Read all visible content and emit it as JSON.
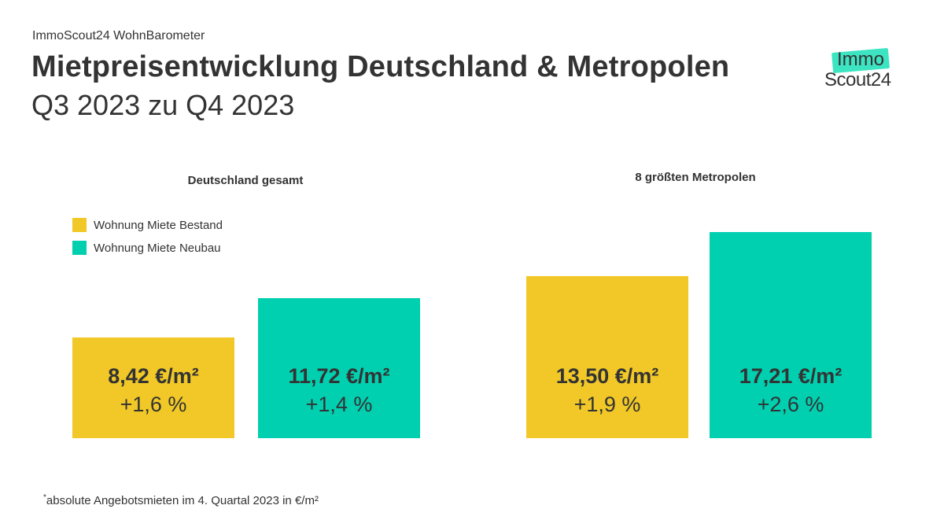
{
  "header": {
    "kicker": "ImmoScout24 WohnBarometer",
    "title": "Mietpreisentwicklung Deutschland & Metropolen",
    "subtitle": "Q3 2023 zu Q4 2023"
  },
  "logo": {
    "line1": "Immo",
    "line2": "Scout24"
  },
  "legend": [
    {
      "label": "Wohnung Miete Bestand",
      "color": "#f1c827"
    },
    {
      "label": "Wohnung Miete Neubau",
      "color": "#00d0b0"
    }
  ],
  "footnote": {
    "marker": "*",
    "text": "absolute Angebotsmieten im 4. Quartal 2023 in €/m²"
  },
  "chart_data": [
    {
      "type": "bar",
      "title": "Deutschland gesamt",
      "unit": "€/m²",
      "categories": [
        "Wohnung Miete Bestand",
        "Wohnung Miete Neubau"
      ],
      "values": [
        8.42,
        11.72
      ],
      "value_labels": [
        "8,42 €/m²",
        "11,72 €/m²"
      ],
      "changes": [
        "+1,6 %",
        "+1,4 %"
      ],
      "colors": [
        "#f1c827",
        "#00d0b0"
      ]
    },
    {
      "type": "bar",
      "title": "8 größten Metropolen",
      "unit": "€/m²",
      "categories": [
        "Wohnung Miete Bestand",
        "Wohnung Miete Neubau"
      ],
      "values": [
        13.5,
        17.21
      ],
      "value_labels": [
        "13,50 €/m²",
        "17,21 €/m²"
      ],
      "changes": [
        "+1,9 %",
        "+2,6 %"
      ],
      "colors": [
        "#f1c827",
        "#00d0b0"
      ]
    }
  ]
}
